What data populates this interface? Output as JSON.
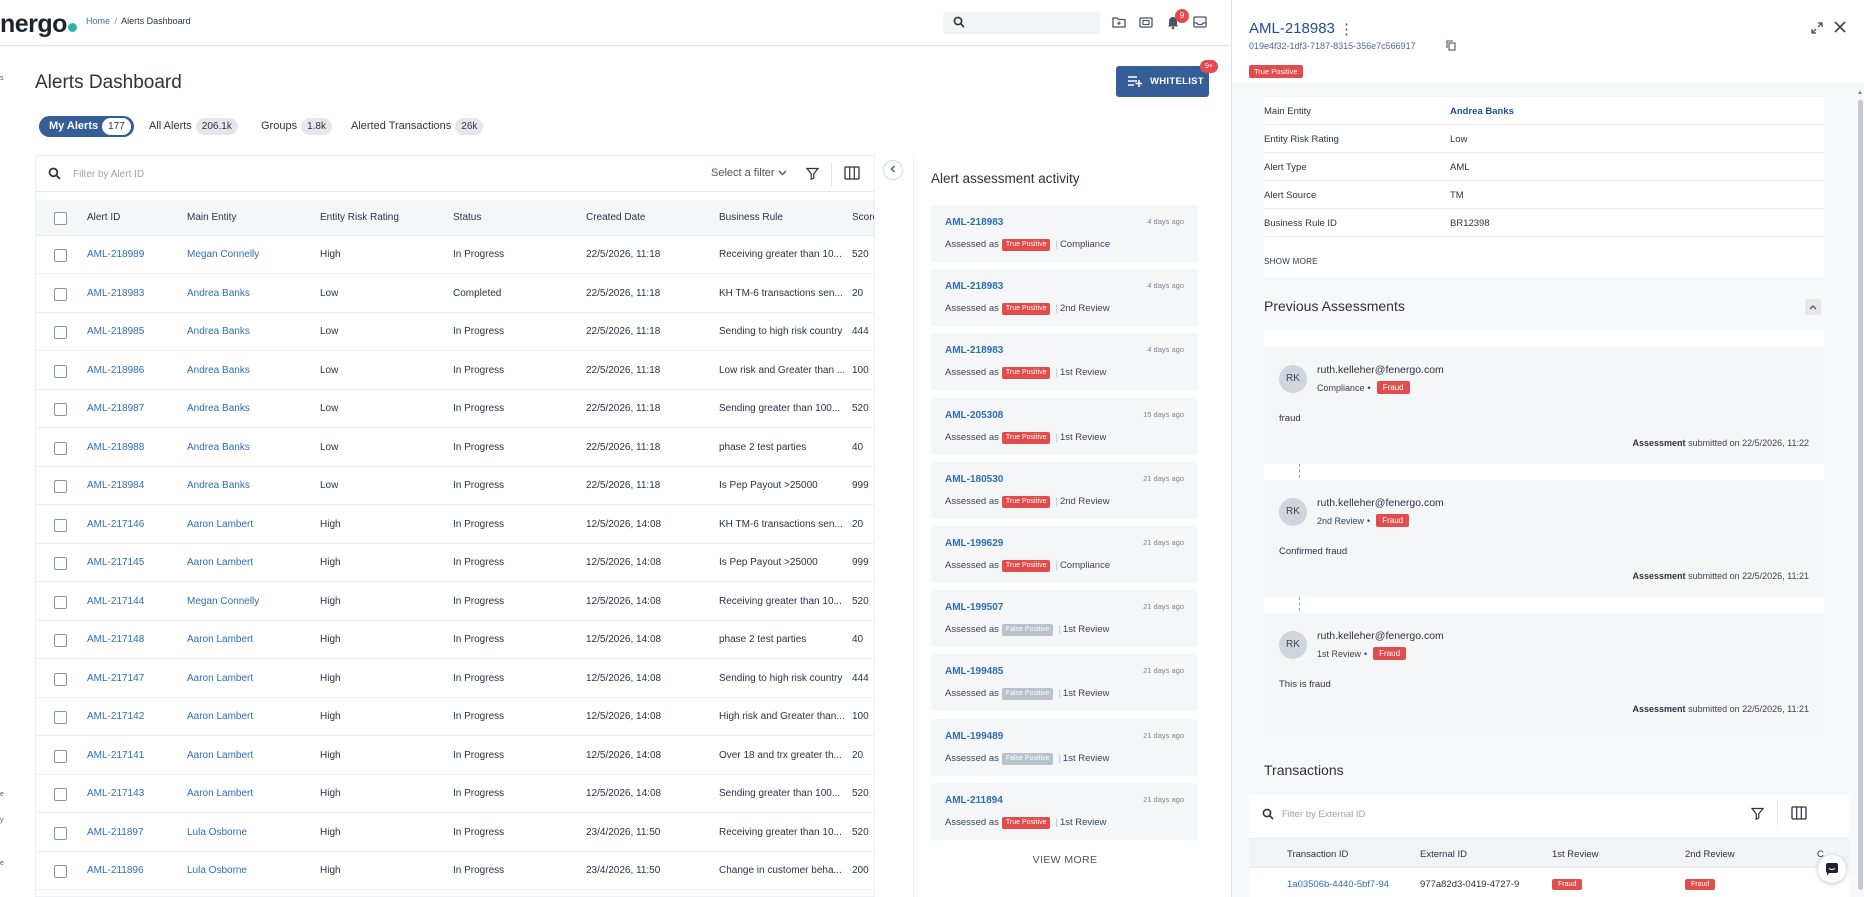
{
  "app": {
    "logo": "nergo"
  },
  "breadcrumb": {
    "home": "Home",
    "separator": "/",
    "current": "Alerts Dashboard"
  },
  "header": {
    "search_placeholder": "",
    "notification_count": "9"
  },
  "rail": [
    "s",
    "e",
    "y",
    "e"
  ],
  "page": {
    "title": "Alerts Dashboard",
    "whitelist_label": "WHITELIST",
    "whitelist_badge": "9+"
  },
  "tabs": [
    {
      "label": "My Alerts",
      "count": "177",
      "active": true
    },
    {
      "label": "All Alerts",
      "count": "206.1k",
      "active": false
    },
    {
      "label": "Groups",
      "count": "1.8k",
      "active": false
    },
    {
      "label": "Alerted Transactions",
      "count": "26k",
      "active": false
    }
  ],
  "table": {
    "filter_placeholder": "Filter by Alert ID",
    "select_filter": "Select a filter",
    "columns": [
      "Alert ID",
      "Main Entity",
      "Entity Risk Rating",
      "Status",
      "Created Date",
      "Business Rule",
      "Score"
    ],
    "rows": [
      [
        "AML-218989",
        "Megan Connelly",
        "High",
        "In Progress",
        "22/5/2026, 11:18",
        "Receiving greater than 10...",
        "520"
      ],
      [
        "AML-218983",
        "Andrea Banks",
        "Low",
        "Completed",
        "22/5/2026, 11:18",
        "KH TM-6 transactions sen...",
        "20"
      ],
      [
        "AML-218985",
        "Andrea Banks",
        "Low",
        "In Progress",
        "22/5/2026, 11:18",
        "Sending to high risk country",
        "444"
      ],
      [
        "AML-218986",
        "Andrea Banks",
        "Low",
        "In Progress",
        "22/5/2026, 11:18",
        "Low risk and Greater than ...",
        "100"
      ],
      [
        "AML-218987",
        "Andrea Banks",
        "Low",
        "In Progress",
        "22/5/2026, 11:18",
        "Sending greater than 100...",
        "520"
      ],
      [
        "AML-218988",
        "Andrea Banks",
        "Low",
        "In Progress",
        "22/5/2026, 11:18",
        "phase 2 test parties",
        "40"
      ],
      [
        "AML-218984",
        "Andrea Banks",
        "Low",
        "In Progress",
        "22/5/2026, 11:18",
        "Is Pep Payout >25000",
        "999"
      ],
      [
        "AML-217146",
        "Aaron Lambert",
        "High",
        "In Progress",
        "12/5/2026, 14:08",
        "KH TM-6 transactions sen...",
        "20"
      ],
      [
        "AML-217145",
        "Aaron Lambert",
        "High",
        "In Progress",
        "12/5/2026, 14:08",
        "Is Pep Payout >25000",
        "999"
      ],
      [
        "AML-217144",
        "Megan Connelly",
        "High",
        "In Progress",
        "12/5/2026, 14:08",
        "Receiving greater than 10...",
        "520"
      ],
      [
        "AML-217148",
        "Aaron Lambert",
        "High",
        "In Progress",
        "12/5/2026, 14:08",
        "phase 2 test parties",
        "40"
      ],
      [
        "AML-217147",
        "Aaron Lambert",
        "High",
        "In Progress",
        "12/5/2026, 14:08",
        "Sending to high risk country",
        "444"
      ],
      [
        "AML-217142",
        "Aaron Lambert",
        "High",
        "In Progress",
        "12/5/2026, 14:08",
        "High risk and Greater than...",
        "100"
      ],
      [
        "AML-217141",
        "Aaron Lambert",
        "High",
        "In Progress",
        "12/5/2026, 14:08",
        "Over 18 and trx greater th...",
        "20"
      ],
      [
        "AML-217143",
        "Aaron Lambert",
        "High",
        "In Progress",
        "12/5/2026, 14:08",
        "Sending greater than 100...",
        "520"
      ],
      [
        "AML-211897",
        "Lula Osborne",
        "High",
        "In Progress",
        "23/4/2026, 11:50",
        "Receiving greater than 10...",
        "520"
      ],
      [
        "AML-211896",
        "Lula Osborne",
        "High",
        "In Progress",
        "23/4/2026, 11:50",
        "Change in customer beha...",
        "200"
      ]
    ]
  },
  "activity": {
    "title": "Alert assessment activity",
    "assessed_as": "Assessed as",
    "view_more": "VIEW MORE",
    "items": [
      {
        "id": "AML-218983",
        "time": "4 days ago",
        "verdict": "True Positive",
        "kind": "tp",
        "stage": "Compliance"
      },
      {
        "id": "AML-218983",
        "time": "4 days ago",
        "verdict": "True Positive",
        "kind": "tp",
        "stage": "2nd Review"
      },
      {
        "id": "AML-218983",
        "time": "4 days ago",
        "verdict": "True Positive",
        "kind": "tp",
        "stage": "1st Review"
      },
      {
        "id": "AML-205308",
        "time": "15 days ago",
        "verdict": "True Positive",
        "kind": "tp",
        "stage": "1st Review"
      },
      {
        "id": "AML-180530",
        "time": "21 days ago",
        "verdict": "True Positive",
        "kind": "tp",
        "stage": "2nd Review"
      },
      {
        "id": "AML-199629",
        "time": "21 days ago",
        "verdict": "True Positive",
        "kind": "tp",
        "stage": "Compliance"
      },
      {
        "id": "AML-199507",
        "time": "21 days ago",
        "verdict": "False Positive",
        "kind": "fp",
        "stage": "1st Review"
      },
      {
        "id": "AML-199485",
        "time": "21 days ago",
        "verdict": "False Positive",
        "kind": "fp",
        "stage": "1st Review"
      },
      {
        "id": "AML-199489",
        "time": "21 days ago",
        "verdict": "False Positive",
        "kind": "fp",
        "stage": "1st Review"
      },
      {
        "id": "AML-211894",
        "time": "21 days ago",
        "verdict": "True Positive",
        "kind": "tp",
        "stage": "1st Review"
      }
    ]
  },
  "panel": {
    "title": "AML-218983",
    "guid": "019e4f32-1df3-7187-8315-356e7c566917",
    "status": "True Positive",
    "details": [
      {
        "label": "Main Entity",
        "value": "Andrea Banks",
        "link": true
      },
      {
        "label": "Entity Risk Rating",
        "value": "Low",
        "link": false
      },
      {
        "label": "Alert Type",
        "value": "AML",
        "link": false
      },
      {
        "label": "Alert Source",
        "value": "TM",
        "link": false
      },
      {
        "label": "Business Rule ID",
        "value": "BR12398",
        "link": false
      }
    ],
    "show_more": "SHOW MORE",
    "previous_title": "Previous Assessments",
    "assessments": [
      {
        "initials": "RK",
        "email": "ruth.kelleher@fenergo.com",
        "stage": "Compliance",
        "tag": "Fraud",
        "comment": "fraud",
        "submitted_label": "Assessment",
        "submitted_text": "submitted on 22/5/2026, 11:22"
      },
      {
        "initials": "RK",
        "email": "ruth.kelleher@fenergo.com",
        "stage": "2nd Review",
        "tag": "Fraud",
        "comment": "Confirmed fraud",
        "submitted_label": "Assessment",
        "submitted_text": "submitted on 22/5/2026, 11:21"
      },
      {
        "initials": "RK",
        "email": "ruth.kelleher@fenergo.com",
        "stage": "1st Review",
        "tag": "Fraud",
        "comment": "This is fraud",
        "submitted_label": "Assessment",
        "submitted_text": "submitted on 22/5/2026, 11:21"
      }
    ],
    "transactions_title": "Transactions",
    "tx_filter_placeholder": "Filter by External ID",
    "tx_columns": [
      "Transaction ID",
      "External ID",
      "1st Review",
      "2nd Review",
      "C"
    ],
    "tx_row": {
      "transaction_id": "1a03506b-4440-5bf7-94",
      "external_id": "977a82d3-0419-4727-9",
      "first": "Fraud",
      "second": "Fraud"
    }
  },
  "colors": {
    "brand": "#355e98",
    "link": "#2f6db5",
    "danger": "#e14d4d",
    "muted_pill": "#b9c1cb"
  }
}
